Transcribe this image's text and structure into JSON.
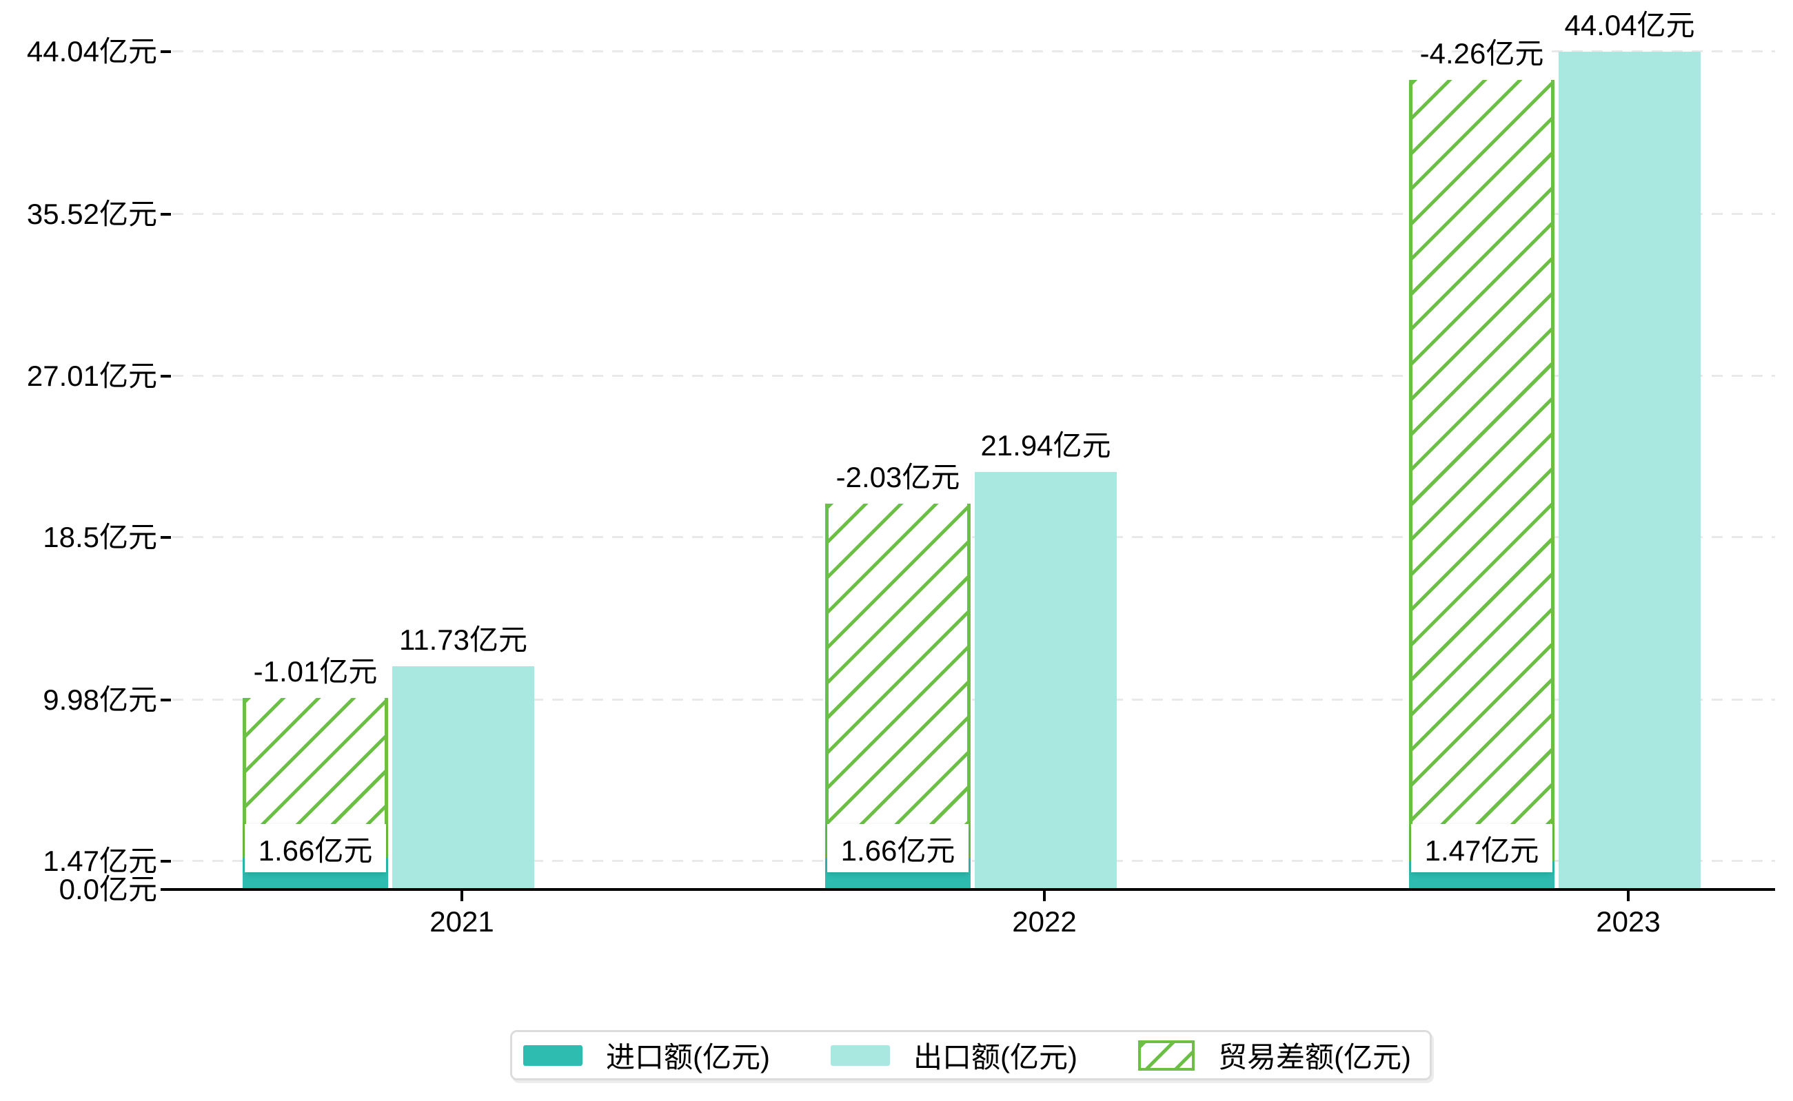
{
  "chart_data": {
    "type": "bar",
    "title": "",
    "xlabel": "",
    "ylabel": "",
    "categories": [
      "2021",
      "2022",
      "2023"
    ],
    "series": [
      {
        "name": "进口额(亿元)",
        "values": [
          1.66,
          1.66,
          1.47
        ],
        "labels": [
          "1.66亿元",
          "1.66亿元",
          "1.47亿元"
        ],
        "color": "#2ebcb0",
        "style": "solid"
      },
      {
        "name": "出口额(亿元)",
        "values": [
          11.73,
          21.94,
          44.04
        ],
        "labels": [
          "11.73亿元",
          "21.94亿元",
          "44.04亿元"
        ],
        "color": "#a9e7e1",
        "style": "solid"
      },
      {
        "name": "贸易差额(亿元)",
        "values": [
          -1.01,
          -2.03,
          -4.26
        ],
        "labels": [
          "-1.01亿元",
          "-2.03亿元",
          "-4.26亿元"
        ],
        "color": "#6abf44",
        "style": "hatched",
        "bar_heights": [
          10.07,
          20.28,
          42.57
        ]
      }
    ],
    "y_ticks": [
      {
        "value": 0.0,
        "label": "0.0亿元"
      },
      {
        "value": 1.47,
        "label": "1.47亿元"
      },
      {
        "value": 9.98,
        "label": "9.98亿元"
      },
      {
        "value": 18.5,
        "label": "18.5亿元"
      },
      {
        "value": 27.01,
        "label": "27.01亿元"
      },
      {
        "value": 35.52,
        "label": "35.52亿元"
      },
      {
        "value": 44.04,
        "label": "44.04亿元"
      }
    ],
    "ylim": [
      0,
      46.5
    ],
    "grid": "horizontal-dashed",
    "legend_position": "bottom-center"
  },
  "colors": {
    "import_bar": "#2ebcb0",
    "export_bar": "#a9e7e1",
    "trade_balance_hatch": "#6abf44",
    "gridline": "#e9e9e9",
    "axis": "#000000",
    "text": "#000000",
    "label_box_bg": "#ffffff",
    "legend_border": "#dcdcdc"
  }
}
